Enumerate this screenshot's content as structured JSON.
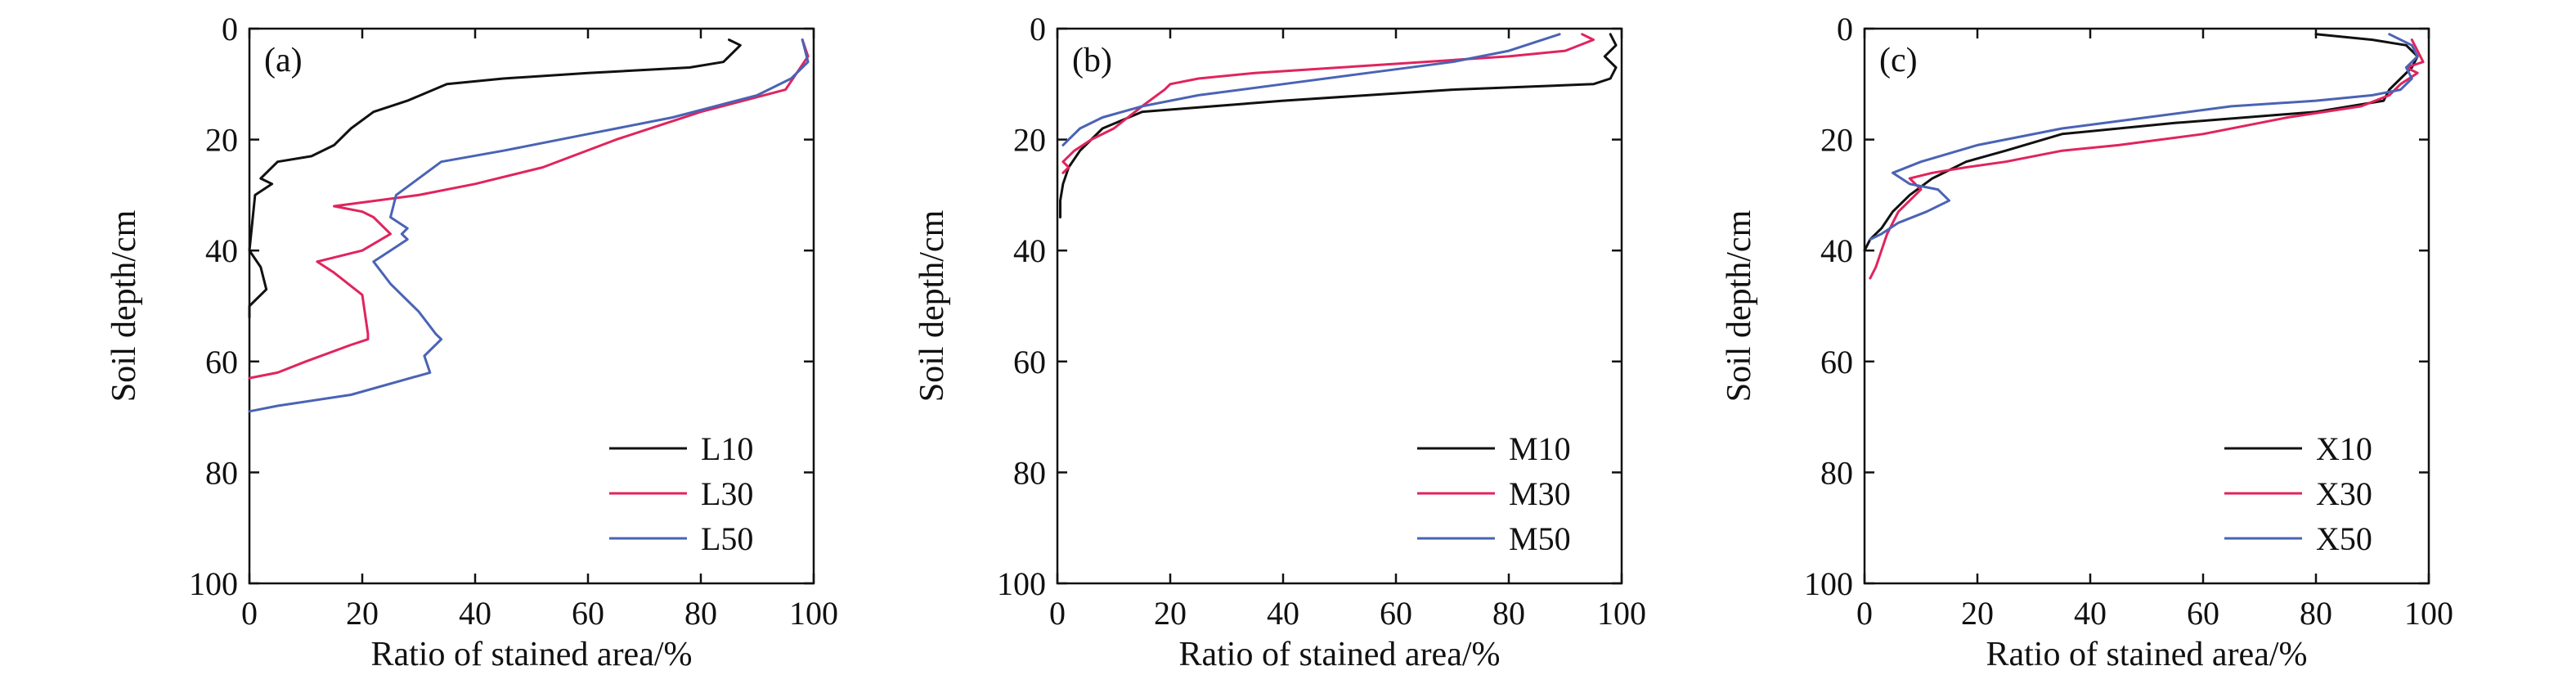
{
  "colors": {
    "series1": "#111111",
    "series2": "#e0245e",
    "series3": "#4a63b5",
    "axis": "#111111"
  },
  "chart_data": [
    {
      "type": "line",
      "panel_label": "(a)",
      "xlabel": "Ratio of stained area/%",
      "ylabel": "Soil depth/cm",
      "xlim": [
        0,
        100
      ],
      "ylim": [
        0,
        100
      ],
      "y_inverted": true,
      "xticks": [
        "0",
        "20",
        "40",
        "60",
        "80",
        "100"
      ],
      "yticks": [
        "0",
        "20",
        "40",
        "60",
        "80",
        "100"
      ],
      "legend_position": "bottom-right",
      "series": [
        {
          "name": "L10",
          "x": [
            85,
            87,
            84,
            78,
            60,
            45,
            35,
            28,
            22,
            18,
            15,
            11,
            5,
            2,
            4,
            1,
            0,
            2,
            3,
            0,
            0
          ],
          "y": [
            2,
            3,
            6,
            7,
            8,
            9,
            10,
            13,
            15,
            18,
            21,
            23,
            24,
            27,
            28,
            30,
            40,
            43,
            47,
            50,
            52
          ]
        },
        {
          "name": "L30",
          "x": [
            98,
            99,
            97,
            95,
            80,
            65,
            52,
            40,
            30,
            15,
            20,
            22,
            25,
            20,
            12,
            15,
            20,
            21,
            21,
            18,
            10,
            5,
            0
          ],
          "y": [
            2,
            5,
            8,
            11,
            15,
            20,
            25,
            28,
            30,
            32,
            33,
            34,
            37,
            40,
            42,
            44,
            48,
            55,
            56,
            57,
            60,
            62,
            63
          ]
        },
        {
          "name": "L50",
          "x": [
            98,
            99,
            96,
            90,
            75,
            60,
            45,
            34,
            30,
            26,
            25,
            28,
            27,
            28,
            25,
            22,
            25,
            30,
            33,
            34,
            31,
            32,
            18,
            5,
            0
          ],
          "y": [
            2,
            6,
            9,
            12,
            16,
            19,
            22,
            24,
            27,
            30,
            34,
            36,
            37,
            38,
            40,
            42,
            46,
            51,
            55,
            56,
            59,
            62,
            66,
            68,
            69
          ]
        }
      ]
    },
    {
      "type": "line",
      "panel_label": "(b)",
      "xlabel": "Ratio of stained area/%",
      "ylabel": "Soil depth/cm",
      "xlim": [
        0,
        100
      ],
      "ylim": [
        0,
        100
      ],
      "y_inverted": true,
      "xticks": [
        "0",
        "20",
        "40",
        "60",
        "80",
        "100"
      ],
      "yticks": [
        "0",
        "20",
        "40",
        "60",
        "80",
        "100"
      ],
      "legend_position": "bottom-right",
      "series": [
        {
          "name": "M10",
          "x": [
            98,
            99,
            97,
            99,
            98,
            95,
            70,
            40,
            15,
            8,
            4,
            2,
            1,
            0.5,
            0.5
          ],
          "y": [
            1,
            3,
            5,
            7,
            9,
            10,
            11,
            13,
            15,
            18,
            22,
            25,
            28,
            31,
            34
          ]
        },
        {
          "name": "M30",
          "x": [
            93,
            95,
            90,
            80,
            65,
            50,
            35,
            25,
            20,
            19,
            15,
            10,
            6,
            3,
            1,
            2,
            1
          ],
          "y": [
            1,
            2,
            4,
            5,
            6,
            7,
            8,
            9,
            10,
            11,
            14,
            18,
            20,
            22,
            24,
            25,
            26
          ]
        },
        {
          "name": "M50",
          "x": [
            89,
            86,
            80,
            70,
            55,
            40,
            25,
            15,
            8,
            4,
            2,
            1
          ],
          "y": [
            1,
            2,
            4,
            6,
            8,
            10,
            12,
            14,
            16,
            18,
            20,
            21
          ]
        }
      ]
    },
    {
      "type": "line",
      "panel_label": "(c)",
      "xlabel": "Ratio of stained area/%",
      "ylabel": "Soil depth/cm",
      "xlim": [
        0,
        100
      ],
      "ylim": [
        0,
        100
      ],
      "y_inverted": true,
      "xticks": [
        "0",
        "20",
        "40",
        "60",
        "80",
        "100"
      ],
      "yticks": [
        "0",
        "20",
        "40",
        "60",
        "80",
        "100"
      ],
      "legend_position": "bottom-right",
      "series": [
        {
          "name": "X10",
          "x": [
            80,
            90,
            96,
            98,
            97,
            95,
            93,
            92,
            80,
            55,
            35,
            25,
            18,
            12,
            8,
            5,
            3,
            1,
            0
          ],
          "y": [
            1,
            2,
            3,
            5,
            7,
            9,
            11,
            13,
            15,
            17,
            19,
            22,
            24,
            27,
            30,
            33,
            36,
            38,
            40
          ]
        },
        {
          "name": "X30",
          "x": [
            97,
            98,
            99,
            96,
            98,
            95,
            93,
            88,
            75,
            60,
            45,
            35,
            25,
            18,
            12,
            8,
            10,
            6,
            4,
            3,
            2,
            1
          ],
          "y": [
            2,
            4,
            6,
            7,
            8,
            10,
            12,
            14,
            16,
            19,
            21,
            22,
            24,
            25,
            26,
            27,
            29,
            33,
            37,
            40,
            43,
            45
          ]
        },
        {
          "name": "X50",
          "x": [
            93,
            97,
            98,
            96,
            97,
            95,
            90,
            80,
            65,
            50,
            35,
            20,
            10,
            5,
            8,
            13,
            15,
            11,
            6,
            3,
            1
          ],
          "y": [
            1,
            3,
            5,
            7,
            9,
            11,
            12,
            13,
            14,
            16,
            18,
            21,
            24,
            26,
            28,
            29,
            31,
            33,
            35,
            37,
            38
          ]
        }
      ]
    }
  ]
}
